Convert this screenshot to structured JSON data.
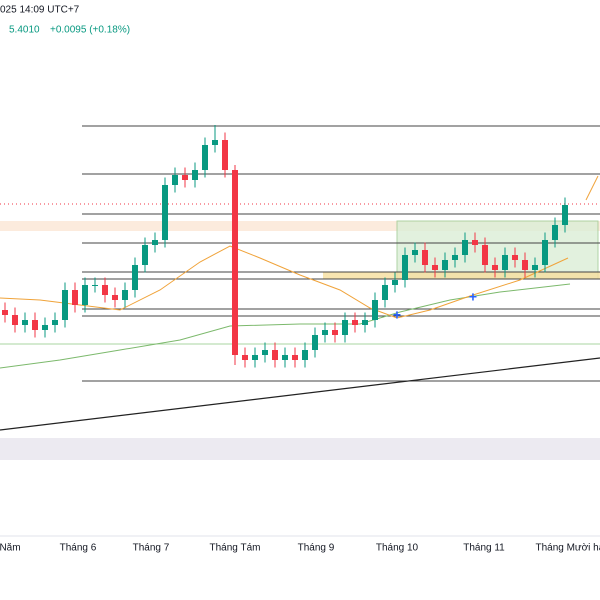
{
  "chart_data": {
    "type": "candlestick",
    "header_time": "025 14:09 UTC+7",
    "last_price": "5.4010",
    "change": "+0.0095 (+0.18%)",
    "x_labels": [
      "Năm",
      "Tháng 6",
      "Tháng 7",
      "Tháng Tám",
      "Tháng 9",
      "Tháng 10",
      "Tháng 11",
      "Tháng Mười hai"
    ],
    "up_color": "#089981",
    "down_color": "#f23645",
    "ylim": [
      24.06,
      26.22
    ],
    "open": [
      24.98,
      24.96,
      24.92,
      24.94,
      24.9,
      24.92,
      24.94,
      25.06,
      25.0,
      25.08,
      25.08,
      25.04,
      25.02,
      25.06,
      25.16,
      25.24,
      25.26,
      25.48,
      25.52,
      25.5,
      25.54,
      25.64,
      25.66,
      25.54,
      24.8,
      24.78,
      24.8,
      24.82,
      24.78,
      24.8,
      24.78,
      24.82,
      24.88,
      24.9,
      24.88,
      24.94,
      24.92,
      24.94,
      25.02,
      25.08,
      25.1,
      25.2,
      25.22,
      25.16,
      25.14,
      25.18,
      25.2,
      25.26,
      25.24,
      25.16,
      25.14,
      25.2,
      25.18,
      25.14,
      25.16,
      25.26,
      25.32
    ],
    "high": [
      25.01,
      24.99,
      24.97,
      24.97,
      24.95,
      24.97,
      25.09,
      25.09,
      25.11,
      25.11,
      25.11,
      25.07,
      25.09,
      25.19,
      25.27,
      25.29,
      25.51,
      25.55,
      25.55,
      25.57,
      25.67,
      25.72,
      25.69,
      25.56,
      24.83,
      24.83,
      24.85,
      24.85,
      24.83,
      24.83,
      24.85,
      24.91,
      24.93,
      24.93,
      24.97,
      24.97,
      24.97,
      25.05,
      25.11,
      25.13,
      25.23,
      25.25,
      25.25,
      25.19,
      25.21,
      25.23,
      25.29,
      25.29,
      25.27,
      25.19,
      25.23,
      25.23,
      25.21,
      25.19,
      25.29,
      25.35,
      25.43
    ],
    "low": [
      24.93,
      24.89,
      24.89,
      24.87,
      24.87,
      24.89,
      24.91,
      24.97,
      24.97,
      25.05,
      25.01,
      24.99,
      24.99,
      25.03,
      25.13,
      25.21,
      25.23,
      25.45,
      25.47,
      25.47,
      25.51,
      25.61,
      25.51,
      24.76,
      24.75,
      24.75,
      24.77,
      24.75,
      24.75,
      24.75,
      24.75,
      24.79,
      24.85,
      24.85,
      24.85,
      24.89,
      24.89,
      24.91,
      24.99,
      25.05,
      25.07,
      25.17,
      25.13,
      25.11,
      25.11,
      25.15,
      25.17,
      25.21,
      25.13,
      25.11,
      25.11,
      25.15,
      25.11,
      25.11,
      25.13,
      25.23,
      25.29
    ],
    "close": [
      24.96,
      24.92,
      24.94,
      24.9,
      24.92,
      24.94,
      25.06,
      25.0,
      25.08,
      25.08,
      25.04,
      25.02,
      25.06,
      25.16,
      25.24,
      25.26,
      25.48,
      25.52,
      25.5,
      25.54,
      25.64,
      25.66,
      25.54,
      24.8,
      24.78,
      24.8,
      24.82,
      24.78,
      24.8,
      24.78,
      24.82,
      24.88,
      24.9,
      24.88,
      24.94,
      24.92,
      24.94,
      25.02,
      25.08,
      25.1,
      25.2,
      25.22,
      25.16,
      25.14,
      25.18,
      25.2,
      25.26,
      25.24,
      25.16,
      25.14,
      25.2,
      25.18,
      25.14,
      25.16,
      25.26,
      25.32,
      25.4
    ]
  }
}
